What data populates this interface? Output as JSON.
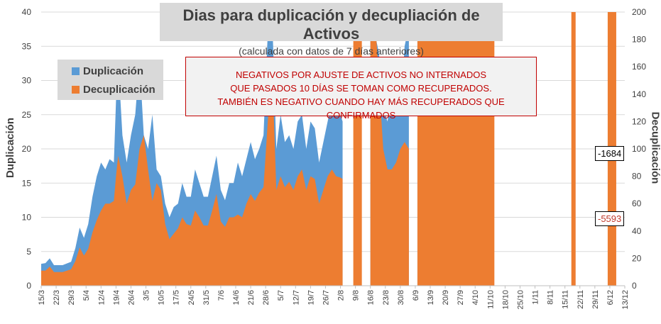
{
  "colors": {
    "duplicacion": "#5b9bd5",
    "decuplicacion": "#ed7d31",
    "axis_text": "#404040",
    "note_red": "#c00000"
  },
  "title": "Dias para duplicación y decupliación de Activos",
  "subtitle": "(calculada con datos de 7 días anteriores)",
  "legend": {
    "duplicacion": "Duplicación",
    "decuplicacion": "Decuplicación"
  },
  "note_lines": [
    "NEGATIVOS POR AJUSTE DE ACTIVOS NO INTERNADOS",
    "QUE PASADOS 10 DÍAS SE TOMAN COMO RECUPERADOS.",
    "TAMBIÉN ES NEGATIVO CUANDO HAY MÁS RECUPERADOS QUE CONFIRMADOS"
  ],
  "value_labels": {
    "duplicacion": "-1684",
    "decuplicacion": "-5593"
  },
  "chart_data": {
    "type": "area",
    "title": "Dias para duplicación y decupliación de Activos",
    "ylabel_left": "Duplicación",
    "ylabel_right": "Decuplicación",
    "ylim_left": [
      0,
      40
    ],
    "ylim_right": [
      0,
      200
    ],
    "y_ticks_left": [
      0,
      5,
      10,
      15,
      20,
      25,
      30,
      35,
      40
    ],
    "y_ticks_right": [
      0,
      20,
      40,
      60,
      80,
      100,
      120,
      140,
      160,
      180,
      200
    ],
    "x_start": "15/3",
    "x_end": "13/12",
    "x_tick_labels": [
      "15/3",
      "22/3",
      "29/3",
      "5/4",
      "12/4",
      "19/4",
      "26/4",
      "3/5",
      "10/5",
      "17/5",
      "24/5",
      "31/5",
      "7/6",
      "14/6",
      "21/6",
      "28/6",
      "5/7",
      "12/7",
      "19/7",
      "26/7",
      "2/8",
      "9/8",
      "16/8",
      "23/8",
      "30/8",
      "6/9",
      "13/9",
      "20/9",
      "27/9",
      "4/10",
      "11/10",
      "18/10",
      "25/10",
      "1/11",
      "8/11",
      "15/11",
      "22/11",
      "29/11",
      "6/12",
      "13/12"
    ],
    "series": [
      {
        "name": "Duplicación",
        "axis": "left",
        "points": [
          [
            0,
            3.2
          ],
          [
            2,
            3.3
          ],
          [
            4,
            4.0
          ],
          [
            6,
            3.0
          ],
          [
            10,
            3.0
          ],
          [
            14,
            3.5
          ],
          [
            16,
            5.5
          ],
          [
            18,
            8.5
          ],
          [
            20,
            7.0
          ],
          [
            22,
            9.0
          ],
          [
            24,
            13.0
          ],
          [
            26,
            16.0
          ],
          [
            28,
            18.0
          ],
          [
            30,
            17.0
          ],
          [
            32,
            18.5
          ],
          [
            34,
            18.0
          ],
          [
            35,
            27.0
          ],
          [
            36,
            33.0
          ],
          [
            38,
            22.0
          ],
          [
            40,
            18.0
          ],
          [
            42,
            22.0
          ],
          [
            44,
            25.0
          ],
          [
            46,
            33.0
          ],
          [
            48,
            22.0
          ],
          [
            50,
            20.0
          ],
          [
            52,
            25.0
          ],
          [
            54,
            17.0
          ],
          [
            56,
            16.0
          ],
          [
            58,
            12.0
          ],
          [
            60,
            10.0
          ],
          [
            62,
            11.5
          ],
          [
            64,
            12.0
          ],
          [
            66,
            15.0
          ],
          [
            68,
            13.0
          ],
          [
            70,
            13.0
          ],
          [
            72,
            17.0
          ],
          [
            74,
            15.0
          ],
          [
            76,
            13.0
          ],
          [
            78,
            13.0
          ],
          [
            80,
            16.0
          ],
          [
            82,
            19.0
          ],
          [
            84,
            14.0
          ],
          [
            86,
            12.5
          ],
          [
            88,
            15.0
          ],
          [
            90,
            15.0
          ],
          [
            92,
            18.0
          ],
          [
            94,
            16.0
          ],
          [
            96,
            18.5
          ],
          [
            98,
            21.0
          ],
          [
            100,
            18.5
          ],
          [
            102,
            20.0
          ],
          [
            104,
            22.0
          ],
          [
            106,
            37.0
          ],
          [
            108,
            40.0
          ],
          [
            110,
            20.0
          ],
          [
            112,
            25.0
          ],
          [
            114,
            21.0
          ],
          [
            116,
            22.0
          ],
          [
            118,
            20.0
          ],
          [
            120,
            24.0
          ],
          [
            122,
            25.0
          ],
          [
            124,
            20.0
          ],
          [
            126,
            24.0
          ],
          [
            128,
            23.0
          ],
          [
            130,
            18.0
          ],
          [
            132,
            21.0
          ],
          [
            134,
            24.0
          ],
          [
            136,
            27.0
          ],
          [
            138,
            25.0
          ],
          [
            140,
            25.0
          ],
          [
            141,
            24.0
          ],
          [
            142,
            null
          ],
          [
            153,
            null
          ],
          [
            154,
            40.0
          ],
          [
            156,
            37.0
          ],
          [
            158,
            34.0
          ],
          [
            160,
            26.0
          ],
          [
            162,
            24.0
          ],
          [
            164,
            28.0
          ],
          [
            166,
            28.0
          ],
          [
            168,
            25.0
          ],
          [
            170,
            35.0
          ],
          [
            172,
            38.0
          ],
          [
            174,
            null
          ],
          [
            175,
            null
          ],
          [
            176,
            40.0
          ],
          [
            178,
            40.0
          ],
          [
            180,
            40.0
          ],
          [
            182,
            35.0
          ],
          [
            184,
            38.0
          ],
          [
            186,
            35.0
          ],
          [
            188,
            32.0
          ],
          [
            190,
            30.0
          ],
          [
            192,
            29.0
          ],
          [
            194,
            28.0
          ],
          [
            196,
            35.0
          ],
          [
            198,
            32.0
          ],
          [
            200,
            36.0
          ],
          [
            202,
            38.0
          ],
          [
            204,
            35.0
          ],
          [
            206,
            40.0
          ],
          [
            208,
            40.0
          ],
          [
            210,
            40.0
          ],
          [
            212,
            null
          ]
        ]
      },
      {
        "name": "Decuplicación",
        "axis": "right",
        "points": [
          [
            0,
            11
          ],
          [
            2,
            11
          ],
          [
            4,
            14
          ],
          [
            6,
            10
          ],
          [
            10,
            10
          ],
          [
            14,
            12
          ],
          [
            16,
            18
          ],
          [
            18,
            28
          ],
          [
            20,
            22
          ],
          [
            22,
            27
          ],
          [
            24,
            39
          ],
          [
            26,
            48
          ],
          [
            28,
            55
          ],
          [
            30,
            60
          ],
          [
            32,
            60
          ],
          [
            34,
            62
          ],
          [
            35,
            80
          ],
          [
            36,
            95
          ],
          [
            38,
            80
          ],
          [
            40,
            60
          ],
          [
            42,
            70
          ],
          [
            44,
            74
          ],
          [
            46,
            100
          ],
          [
            48,
            110
          ],
          [
            50,
            85
          ],
          [
            52,
            62
          ],
          [
            54,
            75
          ],
          [
            56,
            70
          ],
          [
            58,
            45
          ],
          [
            60,
            34
          ],
          [
            62,
            38
          ],
          [
            64,
            42
          ],
          [
            66,
            50
          ],
          [
            68,
            45
          ],
          [
            70,
            44
          ],
          [
            72,
            55
          ],
          [
            74,
            50
          ],
          [
            76,
            44
          ],
          [
            78,
            44
          ],
          [
            80,
            55
          ],
          [
            82,
            67
          ],
          [
            84,
            47
          ],
          [
            86,
            43
          ],
          [
            88,
            50
          ],
          [
            90,
            50
          ],
          [
            92,
            52
          ],
          [
            94,
            50
          ],
          [
            96,
            60
          ],
          [
            98,
            67
          ],
          [
            100,
            62
          ],
          [
            102,
            68
          ],
          [
            104,
            72
          ],
          [
            106,
            120
          ],
          [
            108,
            160
          ],
          [
            110,
            70
          ],
          [
            112,
            80
          ],
          [
            114,
            72
          ],
          [
            116,
            76
          ],
          [
            118,
            70
          ],
          [
            120,
            80
          ],
          [
            122,
            85
          ],
          [
            124,
            70
          ],
          [
            126,
            80
          ],
          [
            128,
            78
          ],
          [
            130,
            60
          ],
          [
            132,
            70
          ],
          [
            134,
            80
          ],
          [
            136,
            85
          ],
          [
            138,
            80
          ],
          [
            140,
            79
          ],
          [
            141,
            78
          ],
          [
            142,
            null
          ],
          [
            145,
            null
          ],
          [
            146,
            200
          ],
          [
            150,
            200
          ],
          [
            151,
            null
          ],
          [
            153,
            null
          ],
          [
            154,
            200
          ],
          [
            156,
            200
          ],
          [
            158,
            150
          ],
          [
            160,
            100
          ],
          [
            162,
            85
          ],
          [
            164,
            85
          ],
          [
            166,
            90
          ],
          [
            168,
            100
          ],
          [
            170,
            105
          ],
          [
            172,
            100
          ],
          [
            174,
            null
          ],
          [
            175,
            null
          ],
          [
            176,
            200
          ],
          [
            212,
            200
          ],
          [
            213,
            null
          ],
          [
            247,
            null
          ],
          [
            248,
            200
          ],
          [
            250,
            200
          ],
          [
            251,
            null
          ],
          [
            264,
            null
          ],
          [
            265,
            200
          ],
          [
            269,
            200
          ],
          [
            270,
            null
          ]
        ]
      }
    ],
    "annotations": [
      {
        "series": "Duplicación",
        "label": "-1684"
      },
      {
        "series": "Decuplicación",
        "label": "-5593"
      }
    ]
  }
}
